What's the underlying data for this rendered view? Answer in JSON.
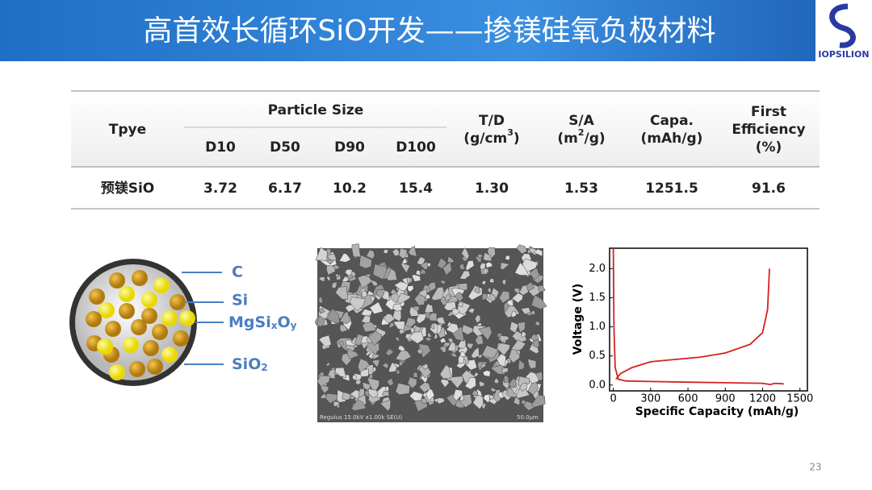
{
  "header": {
    "title": "高首效长循环SiO开发——掺镁硅氧负极材料",
    "logo": "IOPSILION"
  },
  "table": {
    "type_header": "Tpye",
    "group_header": "Particle Size",
    "sub_headers": [
      "D10",
      "D50",
      "D90",
      "D100"
    ],
    "td_header": {
      "line1": "T/D",
      "unit": "(g/cm",
      "sup": "3",
      "close": ")"
    },
    "sa_header": {
      "line1": "S/A",
      "unit": "(m",
      "sup": "2",
      "close": "/g)"
    },
    "capa_header": [
      "Capa.",
      "(mAh/g)"
    ],
    "eff_header": [
      "First",
      "Efficiency",
      "(%)"
    ],
    "rows": [
      [
        "预镁SiO",
        "3.72",
        "6.17",
        "10.2",
        "15.4",
        "1.30",
        "1.53",
        "1251.5",
        "91.6"
      ]
    ]
  },
  "diagram": {
    "labels": [
      {
        "text": "C"
      },
      {
        "text": "Si"
      },
      {
        "text": "MgSi",
        "sub1": "x",
        "mid": "O",
        "sub2": "y"
      },
      {
        "text": "SiO",
        "sub1": "2"
      }
    ]
  },
  "sem": {
    "caption": "Regulus 15.0kV x1.00k SE(U)",
    "scale": "50.0μm"
  },
  "chart_data": {
    "type": "line",
    "xlabel": "Specific Capacity (mAh/g)",
    "ylabel": "Voltage (V)",
    "xlim": [
      -30,
      1560
    ],
    "ylim": [
      -0.1,
      2.35
    ],
    "xticks": [
      0,
      300,
      600,
      900,
      1200,
      1500
    ],
    "yticks": [
      {
        "value": 0,
        "label": "0.0"
      },
      {
        "value": 0.5,
        "label": "0.5"
      },
      {
        "value": 1,
        "label": "1.0"
      },
      {
        "value": 1.5,
        "label": "1.5"
      },
      {
        "value": 2,
        "label": "2.0"
      }
    ],
    "series": [
      {
        "color": "#d62020",
        "x": [
          0,
          5,
          15,
          40,
          100,
          300,
          600,
          900,
          1200,
          1260,
          1300,
          1370
        ],
        "values": [
          2.35,
          1.0,
          0.3,
          0.1,
          0.07,
          0.06,
          0.05,
          0.04,
          0.03,
          0.01,
          0.03,
          0.02
        ]
      },
      {
        "color": "#d62020",
        "x": [
          20,
          60,
          150,
          300,
          400,
          700,
          900,
          1100,
          1200,
          1240,
          1255
        ],
        "values": [
          0.1,
          0.2,
          0.3,
          0.4,
          0.42,
          0.48,
          0.55,
          0.7,
          0.9,
          1.3,
          2.0
        ]
      }
    ]
  },
  "page_number": "23"
}
